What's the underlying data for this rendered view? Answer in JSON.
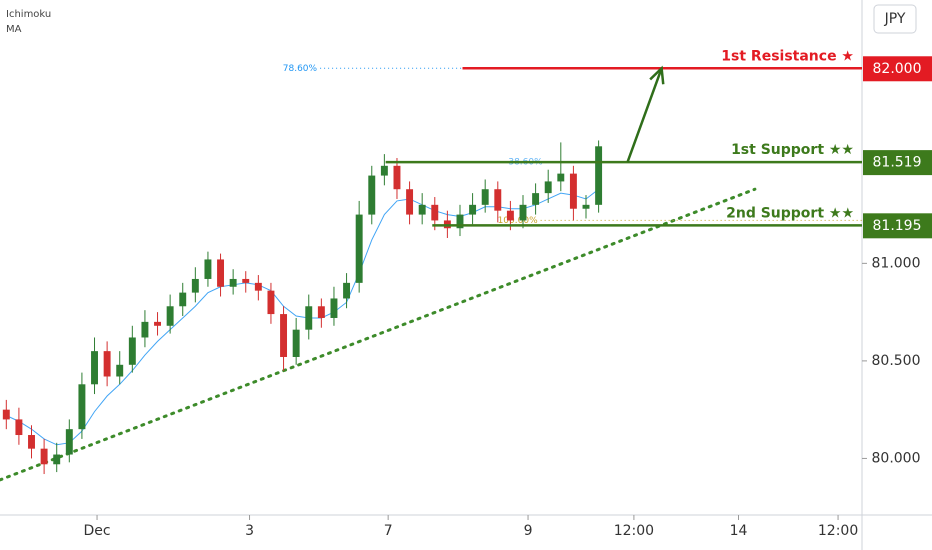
{
  "indicators": [
    "Ichimoku",
    "MA"
  ],
  "currency": "JPY",
  "chart_data": {
    "type": "candlestick",
    "xlim": [
      0,
      68.4
    ],
    "ylim": [
      79.71,
      82.35
    ],
    "xticks": [
      {
        "value": 7.7,
        "label": "Dec"
      },
      {
        "value": 19.8,
        "label": "3"
      },
      {
        "value": 30.8,
        "label": "7"
      },
      {
        "value": 41.9,
        "label": "9"
      },
      {
        "value": 50.3,
        "label": "12:00"
      },
      {
        "value": 58.6,
        "label": "14"
      },
      {
        "value": 66.5,
        "label": "12:00"
      }
    ],
    "yticks": [
      {
        "value": 80,
        "label": "80.000"
      },
      {
        "value": 80.5,
        "label": "80.500"
      },
      {
        "value": 81,
        "label": "81.000"
      }
    ],
    "up_color": "#2e7d32",
    "down_color": "#d32f2f",
    "open": [
      80.25,
      80.2,
      80.12,
      80.05,
      79.97,
      80.02,
      80.15,
      80.38,
      80.55,
      80.42,
      80.48,
      80.62,
      80.7,
      80.68,
      80.78,
      80.85,
      80.92,
      81.02,
      80.88,
      80.92,
      80.9,
      80.86,
      80.74,
      80.52,
      80.66,
      80.78,
      80.72,
      80.82,
      80.9,
      81.25,
      81.45,
      81.5,
      81.38,
      81.25,
      81.3,
      81.22,
      81.18,
      81.25,
      81.3,
      81.38,
      81.27,
      81.22,
      81.3,
      81.36,
      81.42,
      81.46,
      81.28,
      81.3
    ],
    "high": [
      80.3,
      80.26,
      80.17,
      80.1,
      80.08,
      80.2,
      80.44,
      80.62,
      80.6,
      80.55,
      80.68,
      80.76,
      80.75,
      80.84,
      80.9,
      80.98,
      81.06,
      81.05,
      80.97,
      80.96,
      80.94,
      80.9,
      80.78,
      80.72,
      80.84,
      80.82,
      80.88,
      80.95,
      81.32,
      81.5,
      81.56,
      81.54,
      81.42,
      81.36,
      81.34,
      81.27,
      81.3,
      81.36,
      81.43,
      81.42,
      81.32,
      81.35,
      81.41,
      81.48,
      81.62,
      81.5,
      81.35,
      81.63
    ],
    "low": [
      80.15,
      80.07,
      80.0,
      79.92,
      79.93,
      79.98,
      80.1,
      80.33,
      80.37,
      80.38,
      80.44,
      80.57,
      80.63,
      80.64,
      80.73,
      80.8,
      80.88,
      80.83,
      80.84,
      80.85,
      80.81,
      80.69,
      80.45,
      80.48,
      80.61,
      80.67,
      80.68,
      80.77,
      80.85,
      81.2,
      81.4,
      81.33,
      81.2,
      81.2,
      81.17,
      81.13,
      81.14,
      81.2,
      81.26,
      81.21,
      81.17,
      81.18,
      81.25,
      81.31,
      81.37,
      81.22,
      81.23,
      81.26
    ],
    "close": [
      80.2,
      80.12,
      80.05,
      79.97,
      80.02,
      80.15,
      80.38,
      80.55,
      80.42,
      80.48,
      80.62,
      80.7,
      80.68,
      80.78,
      80.85,
      80.92,
      81.02,
      80.88,
      80.92,
      80.9,
      80.86,
      80.74,
      80.52,
      80.66,
      80.78,
      80.72,
      80.82,
      80.9,
      81.25,
      81.45,
      81.5,
      81.38,
      81.25,
      81.3,
      81.22,
      81.18,
      81.25,
      81.3,
      81.38,
      81.27,
      81.22,
      81.3,
      81.36,
      81.42,
      81.46,
      81.28,
      81.3,
      81.6
    ],
    "ma_color": "#42a5f5",
    "ma_values": [
      80.22,
      80.19,
      80.15,
      80.1,
      80.07,
      80.08,
      80.14,
      80.24,
      80.32,
      80.38,
      80.45,
      80.53,
      80.6,
      80.66,
      80.72,
      80.78,
      80.85,
      80.88,
      80.89,
      80.9,
      80.89,
      80.86,
      80.78,
      80.73,
      80.72,
      80.72,
      80.75,
      80.8,
      80.95,
      81.12,
      81.25,
      81.32,
      81.33,
      81.3,
      81.27,
      81.25,
      81.24,
      81.26,
      81.29,
      81.29,
      81.28,
      81.28,
      81.3,
      81.33,
      81.36,
      81.35,
      81.33,
      81.38
    ],
    "levels": [
      {
        "label": "1st Resistance ★",
        "value": 82,
        "value_label": "82.000",
        "color": "#e31b23",
        "from": 36.7
      },
      {
        "label": "1st Support ★★",
        "value": 81.519,
        "value_label": "81.519",
        "color": "#3d7a1c",
        "from": 30.6
      },
      {
        "label": "2nd Support ★★",
        "value": 81.195,
        "value_label": "81.195",
        "color": "#3d7a1c",
        "from": 34.3
      }
    ],
    "fib_levels": [
      {
        "label": "78.60%",
        "value": 82,
        "color": "#2196f3",
        "from": 25.4,
        "to": 36.7
      },
      {
        "label": "38.60%",
        "value": 81.519,
        "color": "#64b5f6",
        "from": 43.3,
        "to": 43.3
      },
      {
        "label": "100.00%",
        "value": 81.22,
        "color": "#c9a227",
        "from": 42.9,
        "to": 68.4
      }
    ],
    "trendline": {
      "x": [
        0,
        59.9
      ],
      "y": [
        79.89,
        81.38
      ],
      "color": "#3d8b2a"
    },
    "arrow": {
      "x": [
        49.8,
        52.5
      ],
      "y": [
        81.52,
        82.0
      ],
      "color": "#2f6e1a"
    }
  }
}
